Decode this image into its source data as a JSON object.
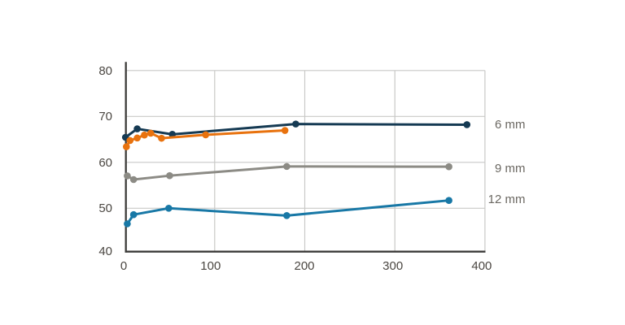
{
  "chart_data": {
    "type": "line",
    "title": "",
    "xlabel": "",
    "ylabel": "",
    "xlim": [
      0,
      400
    ],
    "ylim": [
      40,
      80
    ],
    "x_ticks": [
      0,
      100,
      200,
      300,
      400
    ],
    "y_ticks": [
      40,
      50,
      60,
      70,
      80
    ],
    "grid": "on",
    "legend_position": "right-of-plot",
    "style": {
      "background_color": "#ffffff",
      "axis_color": "#3c3b39",
      "grid_color": "#c9c9c7",
      "tick_label_color": "#4b4742",
      "series_label_color": "#6b6862"
    },
    "series": [
      {
        "label": "6 mm",
        "color": "#153a53",
        "points": [
          [
            1,
            65.45
          ],
          [
            14,
            67.3
          ],
          [
            53,
            66.1
          ],
          [
            190,
            68.35
          ],
          [
            380,
            68.2
          ]
        ]
      },
      {
        "label": "",
        "color": "#e8720e",
        "points": [
          [
            2,
            63.4
          ],
          [
            6,
            64.75
          ],
          [
            14,
            65.3
          ],
          [
            22,
            65.95
          ],
          [
            29,
            66.35
          ],
          [
            41,
            65.25
          ],
          [
            90,
            66.0
          ],
          [
            178,
            66.95
          ]
        ]
      },
      {
        "label": "9 mm",
        "color": "#8c8b85",
        "points": [
          [
            3,
            57.05
          ],
          [
            10,
            56.25
          ],
          [
            50,
            57.1
          ],
          [
            180,
            59.1
          ],
          [
            360,
            59.05
          ]
        ]
      },
      {
        "label": "12 mm",
        "color": "#1878a6",
        "points": [
          [
            3,
            46.6
          ],
          [
            10,
            48.6
          ],
          [
            49,
            50.0
          ],
          [
            180,
            48.4
          ],
          [
            360,
            51.7
          ]
        ]
      }
    ]
  }
}
